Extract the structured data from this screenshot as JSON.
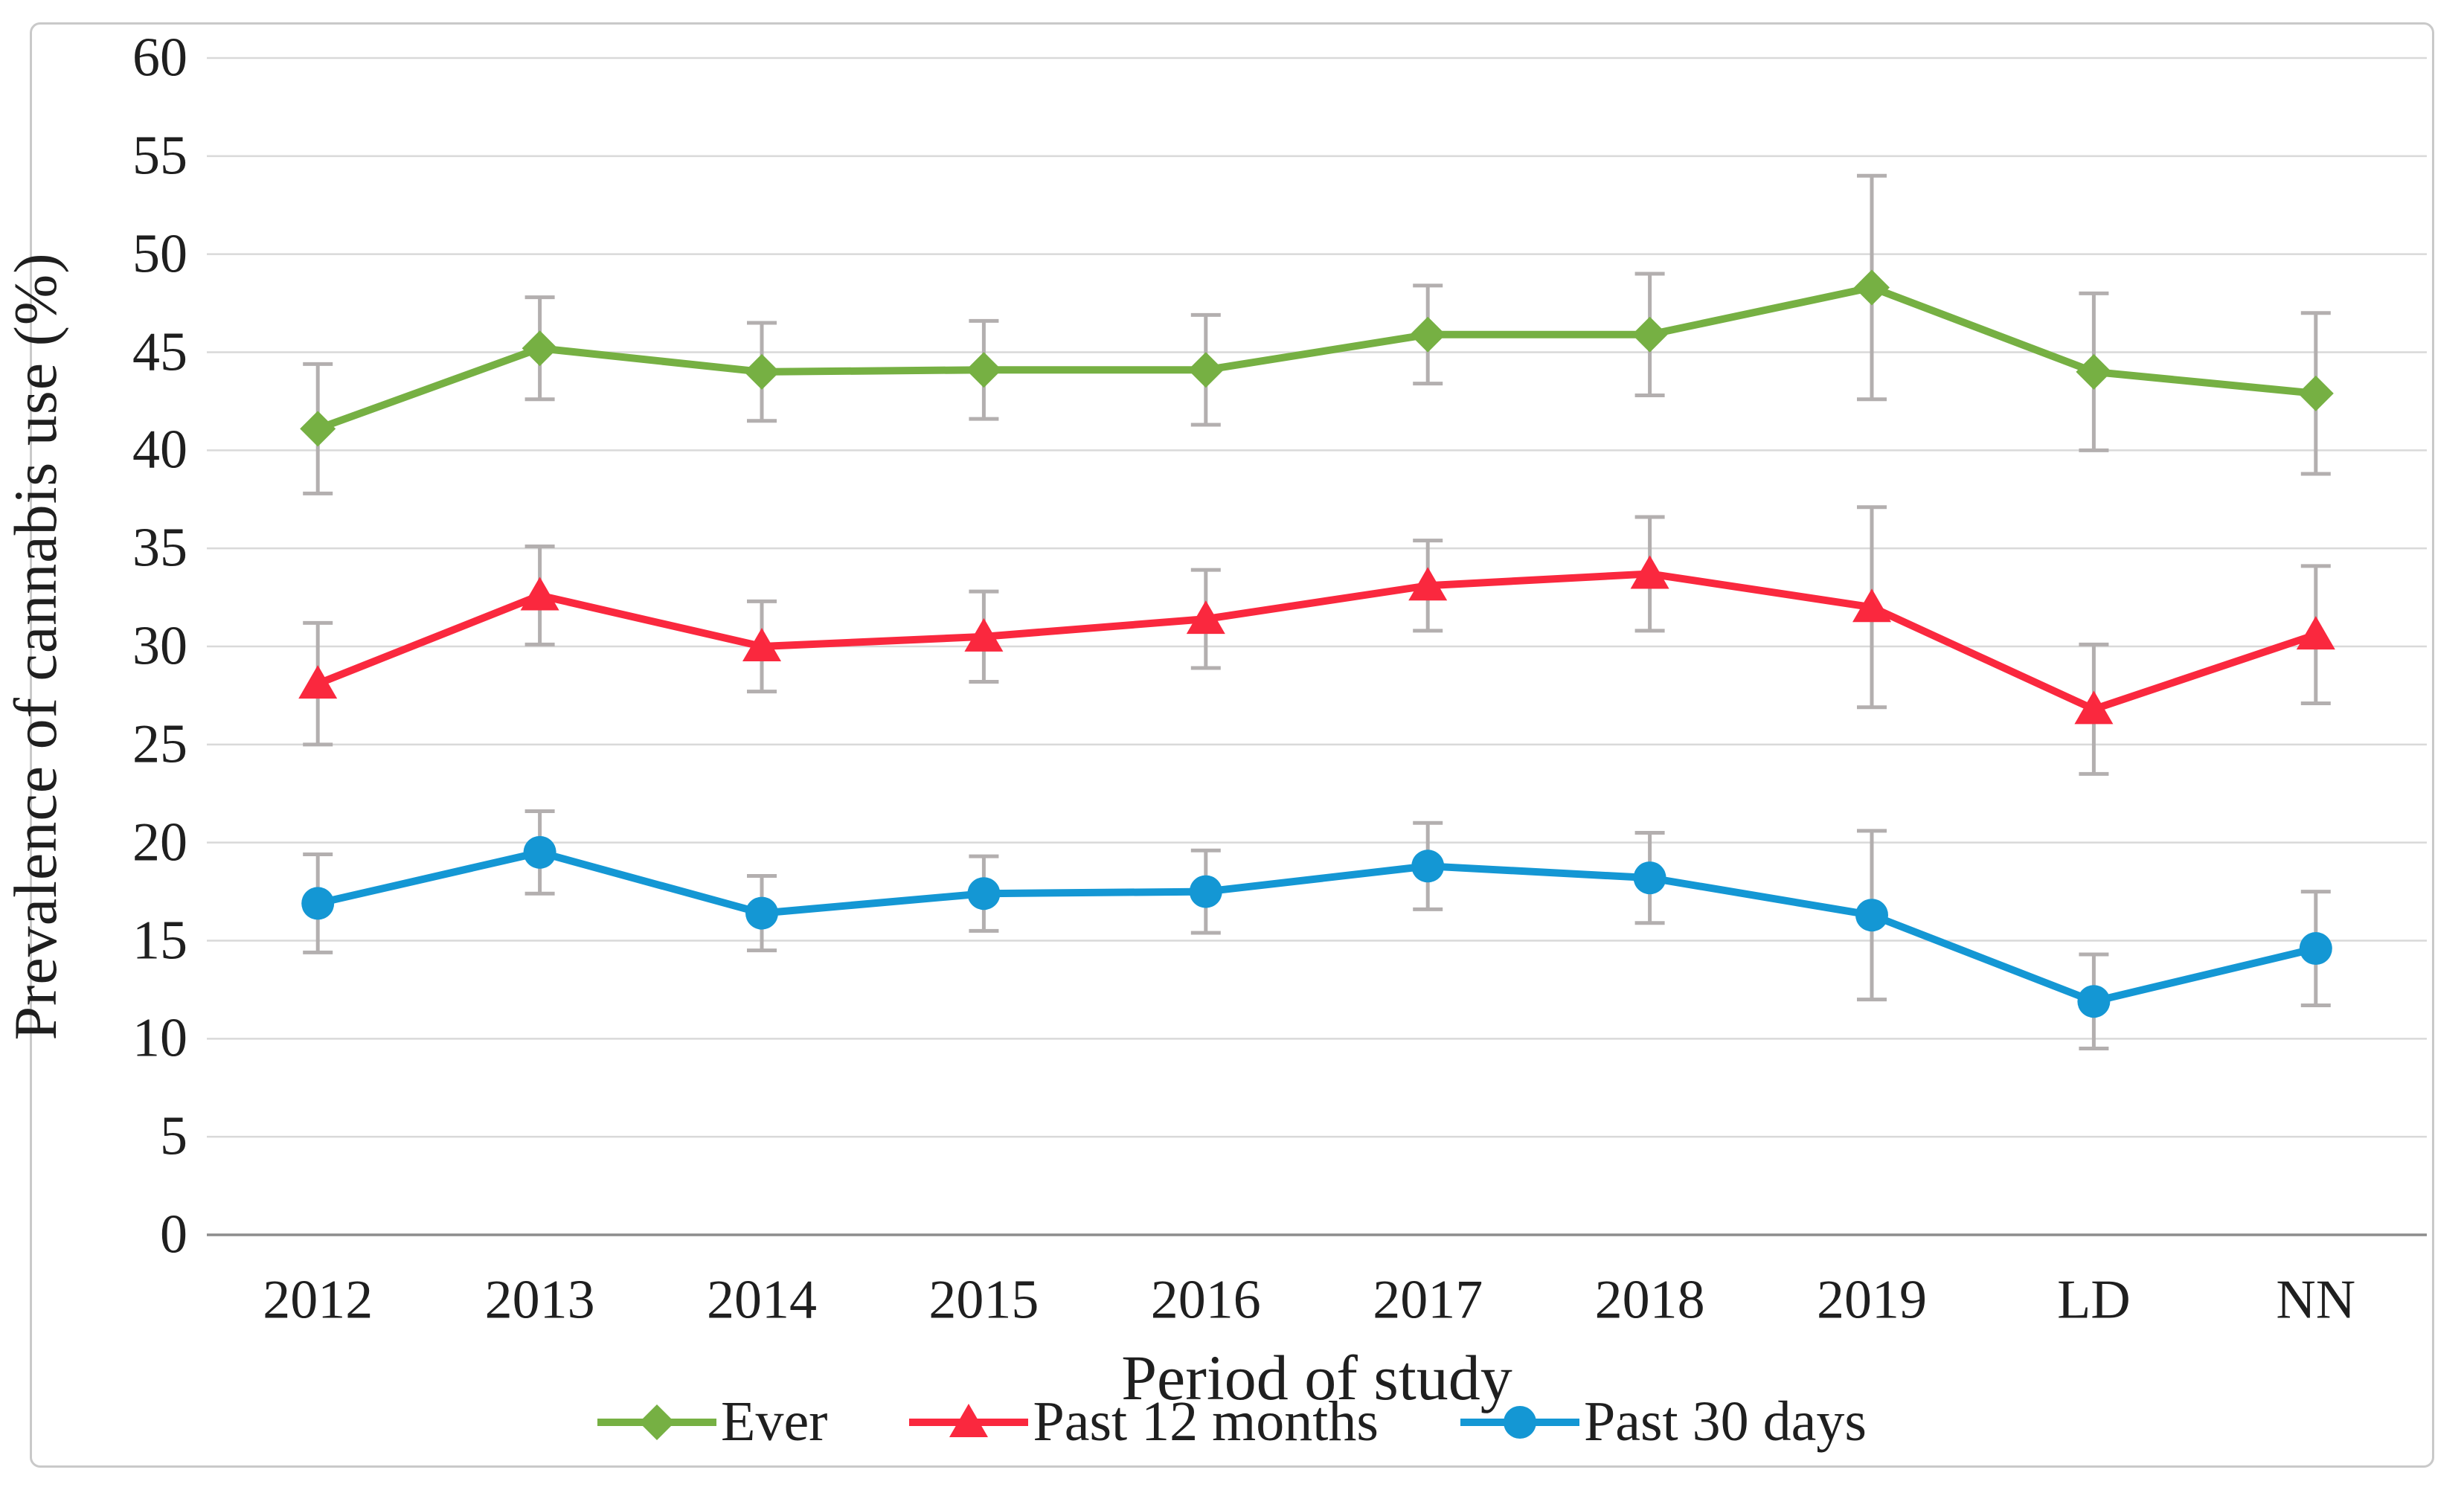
{
  "figure": {
    "background": "#ffffff",
    "border_color": "#c9c9c9"
  },
  "chart_data": {
    "type": "line",
    "title": "",
    "xlabel": "Period of study",
    "ylabel": "Prevalence of cannabis use (%)",
    "categories": [
      "2012",
      "2013",
      "2014",
      "2015",
      "2016",
      "2017",
      "2018",
      "2019",
      "LD",
      "NN"
    ],
    "y_tick_labels": [
      "0",
      "5",
      "10",
      "15",
      "20",
      "25",
      "30",
      "35",
      "40",
      "45",
      "50",
      "55",
      "60"
    ],
    "ylim": [
      0,
      60
    ],
    "ytick_step": 5,
    "grid": true,
    "error_bars": true,
    "legend_position": "bottom",
    "series": [
      {
        "name": "Ever",
        "marker": "diamond",
        "color": "#76B043",
        "values": [
          41.1,
          45.2,
          44.0,
          44.1,
          44.1,
          45.9,
          45.9,
          48.3,
          44.0,
          42.9
        ],
        "ci": [
          3.3,
          2.6,
          2.5,
          2.5,
          2.8,
          2.5,
          3.1,
          5.7,
          4.0,
          4.1
        ]
      },
      {
        "name": "Past 12 months",
        "marker": "triangle",
        "color": "#FA283E",
        "values": [
          28.1,
          32.6,
          30.0,
          30.5,
          31.4,
          33.1,
          33.7,
          32.0,
          26.8,
          30.6
        ],
        "ci": [
          3.1,
          2.5,
          2.3,
          2.3,
          2.5,
          2.3,
          2.9,
          5.1,
          3.3,
          3.5
        ]
      },
      {
        "name": "Past 30 days",
        "marker": "circle",
        "color": "#1497D4",
        "values": [
          16.9,
          19.5,
          16.4,
          17.4,
          17.5,
          18.8,
          18.2,
          16.3,
          11.9,
          14.6
        ],
        "ci": [
          2.5,
          2.1,
          1.9,
          1.9,
          2.1,
          2.2,
          2.3,
          4.3,
          2.4,
          2.9
        ]
      }
    ],
    "style": {
      "gridline_color": "#D9D9D9",
      "axis_line_color": "#8C8C8C",
      "error_bar_color": "#B3AFAF",
      "text_color": "#1f1f1f"
    }
  }
}
